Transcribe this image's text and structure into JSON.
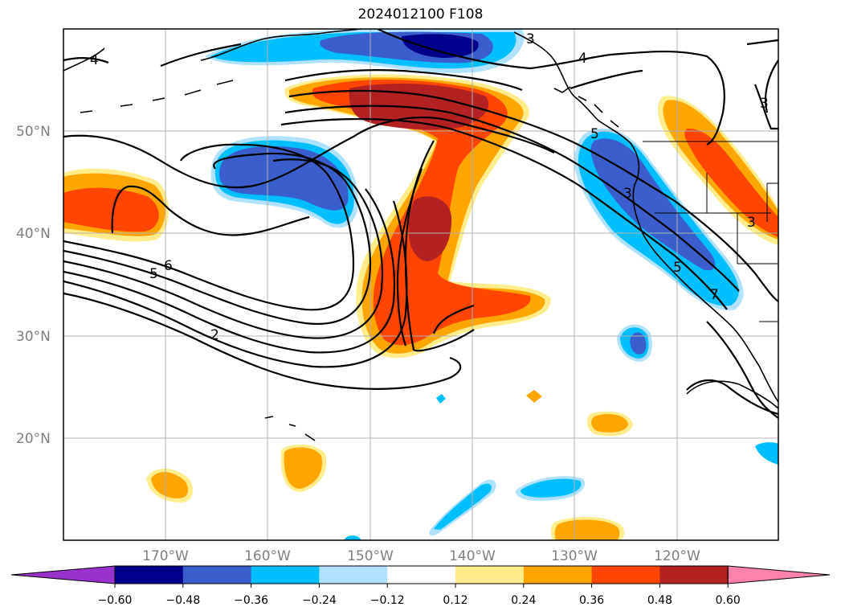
{
  "title": "2024012100 F108",
  "lat_labels": [
    "50°N",
    "40°N",
    "30°N",
    "20°N"
  ],
  "lon_labels": [
    "170°W",
    "160°W",
    "150°W",
    "140°W",
    "130°W",
    "120°W"
  ],
  "contour_labels": [
    "3",
    "4",
    "4",
    "3",
    "3",
    "5",
    "6",
    "5",
    "2",
    "3",
    "5",
    "7"
  ],
  "colorbar": {
    "ticks": [
      "−0.60",
      "−0.48",
      "−0.36",
      "−0.24",
      "−0.12",
      "0.12",
      "0.24",
      "0.36",
      "0.48",
      "0.60"
    ],
    "colors": [
      "#9932cc",
      "#00008b",
      "#3a5fcd",
      "#00bfff",
      "#b0e2ff",
      "#ffffff",
      "#ffec8b",
      "#ffa500",
      "#ff4500",
      "#b22222",
      "#ff82ab"
    ]
  },
  "palette": {
    "deep_neg": "#00008b",
    "mid_neg": "#3a5fcd",
    "light_neg": "#00bfff",
    "pale_neg": "#b0e2ff",
    "pale_pos": "#ffec8b",
    "light_pos": "#ffa500",
    "mid_pos": "#ff4500",
    "deep_pos": "#b22222"
  }
}
